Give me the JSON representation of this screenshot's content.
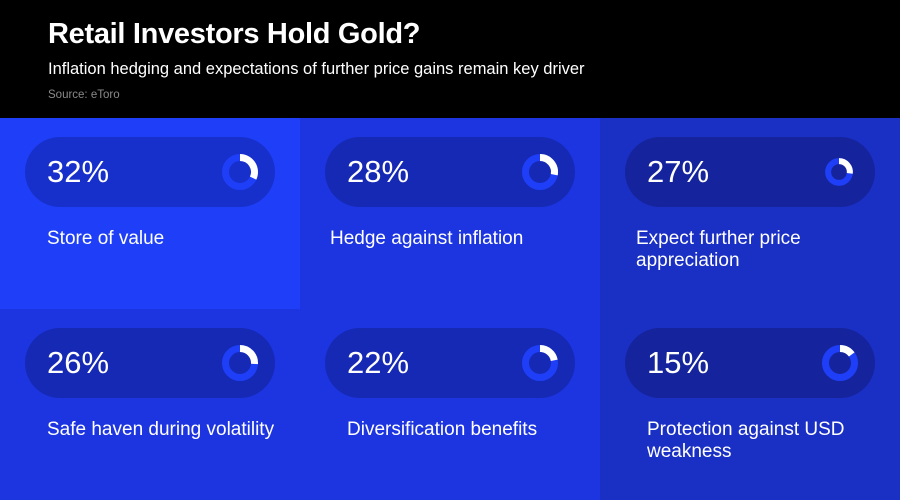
{
  "header": {
    "title": "Retail Investors Hold Gold?",
    "subtitle": "Inflation hedging and expectations of further price gains remain key driver",
    "source": "Source: eToro"
  },
  "colors": {
    "header_bg": "#000000",
    "cell_bright": "#1e3ff7",
    "cell_mid": "#1c35e0",
    "cell_dark": "#1a2fc4",
    "pill_bright": "#1730cc",
    "pill_mid": "#1629b5",
    "pill_dark": "#15249c",
    "ring_fill": "#ffffff",
    "ring_track": "#1e3ff7"
  },
  "chart_data": {
    "type": "table",
    "title": "Retail Investors Hold Gold?",
    "subtitle": "Inflation hedging and expectations of further price gains remain key driver",
    "unit": "%",
    "categories": [
      "Store of value",
      "Hedge against inflation",
      "Expect further price appreciation",
      "Safe haven during volatility",
      "Diversification benefits",
      "Protection against USD weakness"
    ],
    "values": [
      32,
      28,
      27,
      26,
      22,
      15
    ],
    "items": [
      {
        "value_label": "32%",
        "value": 32,
        "label": "Store of value"
      },
      {
        "value_label": "28%",
        "value": 28,
        "label": "Hedge against inflation"
      },
      {
        "value_label": "27%",
        "value": 27,
        "label": "Expect further price appreciation"
      },
      {
        "value_label": "26%",
        "value": 26,
        "label": "Safe haven during volatility"
      },
      {
        "value_label": "22%",
        "value": 22,
        "label": "Diversification benefits"
      },
      {
        "value_label": "15%",
        "value": 15,
        "label": "Protection against USD weakness"
      }
    ]
  }
}
